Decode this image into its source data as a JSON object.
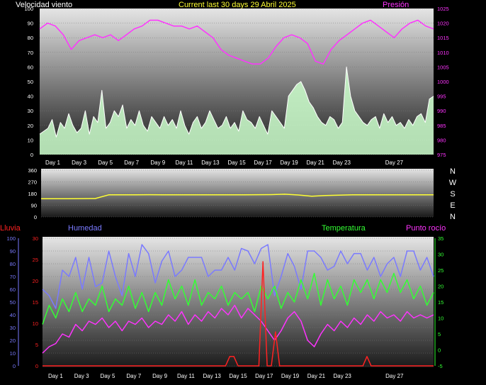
{
  "header": {
    "wind_label": "Velocidad viento",
    "title": "Current last 30 days 29 Abril 2025",
    "pressure_label": "Presión"
  },
  "colors": {
    "pressure": "#ff33ff",
    "wind": "#ffffff",
    "gust": "#ccffcc",
    "direction": "#ffff33",
    "rain": "#ff2222",
    "humidity": "#7a7aff",
    "temperature": "#33ff33",
    "dewpoint": "#ff33ff"
  },
  "chart_data": [
    {
      "type": "line",
      "title": "Current last 30 days 29 Abril 2025",
      "series": [
        {
          "name": "Velocidad viento",
          "axis": "left",
          "ylim": [
            0,
            100
          ],
          "ticks": [
            0,
            10,
            20,
            30,
            40,
            50,
            60,
            70,
            80,
            90,
            100
          ],
          "values": [
            14,
            16,
            18,
            24,
            12,
            22,
            18,
            28,
            20,
            15,
            18,
            30,
            14,
            26,
            22,
            44,
            18,
            22,
            30,
            26,
            34,
            18,
            24,
            20,
            30,
            20,
            16,
            26,
            22,
            18,
            26,
            20,
            24,
            18,
            30,
            20,
            14,
            22,
            26,
            18,
            22,
            30,
            24,
            18,
            20,
            26,
            18,
            22,
            16,
            30,
            24,
            22,
            18,
            26,
            20,
            14,
            30,
            26,
            22,
            18,
            40,
            44,
            48,
            50,
            44,
            36,
            32,
            26,
            22,
            20,
            26,
            24,
            18,
            22,
            60,
            40,
            30,
            26,
            22,
            20,
            24,
            26,
            18,
            28,
            22,
            26,
            20,
            22,
            18,
            24,
            20,
            26,
            28,
            22,
            38,
            40
          ]
        },
        {
          "name": "Presión",
          "axis": "right",
          "ylim": [
            975,
            1025
          ],
          "ticks": [
            975,
            980,
            985,
            990,
            995,
            1000,
            1005,
            1010,
            1015,
            1020,
            1025
          ],
          "values": [
            1018,
            1020,
            1019,
            1016,
            1011,
            1014,
            1015,
            1016,
            1015,
            1016,
            1014,
            1016,
            1018,
            1019,
            1021,
            1021,
            1020,
            1019,
            1019,
            1018,
            1019,
            1017,
            1015,
            1011,
            1009,
            1008,
            1007,
            1006,
            1006,
            1008,
            1012,
            1015,
            1016,
            1015,
            1013,
            1007,
            1006,
            1011,
            1014,
            1016,
            1018,
            1020,
            1021,
            1019,
            1017,
            1015,
            1018,
            1020,
            1021,
            1019,
            1018
          ]
        }
      ]
    },
    {
      "type": "line",
      "series": [
        {
          "name": "Dirección viento",
          "ylim": [
            0,
            360
          ],
          "ticks": [
            0,
            90,
            180,
            270,
            360
          ],
          "values": [
            140,
            140,
            140,
            141,
            142,
            170,
            170,
            170,
            171,
            170,
            170,
            170,
            170,
            170,
            170,
            170,
            171,
            172,
            175,
            169,
            160,
            165,
            168,
            170,
            170,
            170,
            170,
            170,
            170,
            170
          ]
        }
      ],
      "compass": [
        "N",
        "W",
        "S",
        "E",
        "N"
      ]
    },
    {
      "type": "line",
      "series": [
        {
          "name": "Lluvia",
          "axis": "left",
          "ylim": [
            0,
            30
          ],
          "ticks": [
            0,
            5,
            10,
            15,
            20,
            25,
            30
          ],
          "values": [
            0,
            0,
            0,
            0,
            0,
            0,
            0,
            0,
            0,
            0,
            0,
            0,
            0,
            0,
            0,
            0,
            0,
            0,
            0,
            0,
            0,
            0,
            0,
            0,
            0,
            0,
            0,
            0,
            0,
            0,
            0,
            0,
            0,
            0,
            0,
            0,
            0,
            0,
            0,
            0,
            0,
            0,
            0,
            0,
            0,
            2.2,
            2.2,
            0,
            0,
            0,
            0,
            0,
            0,
            24.5,
            0,
            0,
            8,
            0,
            0,
            0,
            0,
            0,
            0,
            0,
            0,
            0,
            0,
            0,
            0,
            0,
            0,
            0,
            0,
            0,
            0,
            0,
            0,
            0,
            2.2,
            0,
            0,
            0,
            0,
            0,
            0,
            0,
            0,
            0,
            0,
            0,
            0,
            0,
            0,
            0,
            0
          ]
        },
        {
          "name": "Humedad",
          "axis": "left",
          "ylim": [
            0,
            100
          ],
          "ticks": [
            0,
            10,
            20,
            30,
            40,
            50,
            60,
            70,
            80,
            90,
            100
          ],
          "values": [
            60,
            55,
            45,
            75,
            70,
            85,
            60,
            85,
            62,
            65,
            90,
            70,
            55,
            88,
            70,
            95,
            88,
            65,
            82,
            90,
            70,
            75,
            85,
            85,
            85,
            70,
            75,
            75,
            85,
            75,
            92,
            90,
            80,
            92,
            95,
            55,
            70,
            88,
            78,
            60,
            90,
            90,
            85,
            75,
            78,
            90,
            80,
            88,
            88,
            75,
            85,
            70,
            80,
            85,
            70,
            90,
            90,
            75,
            85,
            70
          ]
        },
        {
          "name": "Temperatura",
          "axis": "right",
          "ylim": [
            -5,
            35
          ],
          "ticks": [
            -5,
            0,
            5,
            10,
            15,
            20,
            25,
            30,
            35
          ],
          "values": [
            8,
            14,
            10,
            16,
            12,
            18,
            12,
            16,
            14,
            20,
            12,
            16,
            14,
            20,
            13,
            18,
            12,
            18,
            14,
            22,
            16,
            20,
            14,
            22,
            14,
            18,
            16,
            20,
            14,
            18,
            16,
            18,
            12,
            20,
            16,
            20,
            13,
            18,
            15,
            22,
            16,
            24,
            14,
            22,
            16,
            20,
            14,
            22,
            18,
            22,
            16,
            22,
            18,
            24,
            18,
            22,
            16,
            20,
            14,
            18
          ]
        },
        {
          "name": "Punto rocío",
          "axis": "right",
          "ylim": [
            -5,
            35
          ],
          "ticks": [
            -5,
            0,
            5,
            10,
            15,
            20,
            25,
            30,
            35
          ],
          "values": [
            -1,
            1,
            2,
            5,
            4,
            8,
            6,
            9,
            8,
            10,
            7,
            9,
            6,
            9,
            8,
            10,
            7,
            9,
            8,
            11,
            9,
            12,
            8,
            11,
            9,
            12,
            10,
            13,
            11,
            14,
            10,
            13,
            11,
            9,
            6,
            3,
            6,
            10,
            12,
            9,
            3,
            1,
            5,
            8,
            6,
            9,
            7,
            10,
            8,
            11,
            9,
            12,
            10,
            11,
            9,
            12,
            10,
            11,
            10,
            11
          ]
        }
      ]
    }
  ],
  "x_axis": {
    "day_labels": [
      "Day 1",
      "Day 3",
      "Day 5",
      "Day 7",
      "Day 9",
      "Day 11",
      "Day 13",
      "Day 15",
      "Day 17",
      "Day 19",
      "Day 21",
      "Day 23",
      "Day 27"
    ],
    "day_positions": [
      1,
      3,
      5,
      7,
      9,
      11,
      13,
      15,
      17,
      19,
      21,
      23,
      27
    ],
    "range": [
      0,
      30
    ]
  },
  "bottom_labels": {
    "rain": "Lluvia",
    "humidity": "Humedad",
    "temperature": "Temperatura",
    "dewpoint": "Punto rocío"
  }
}
